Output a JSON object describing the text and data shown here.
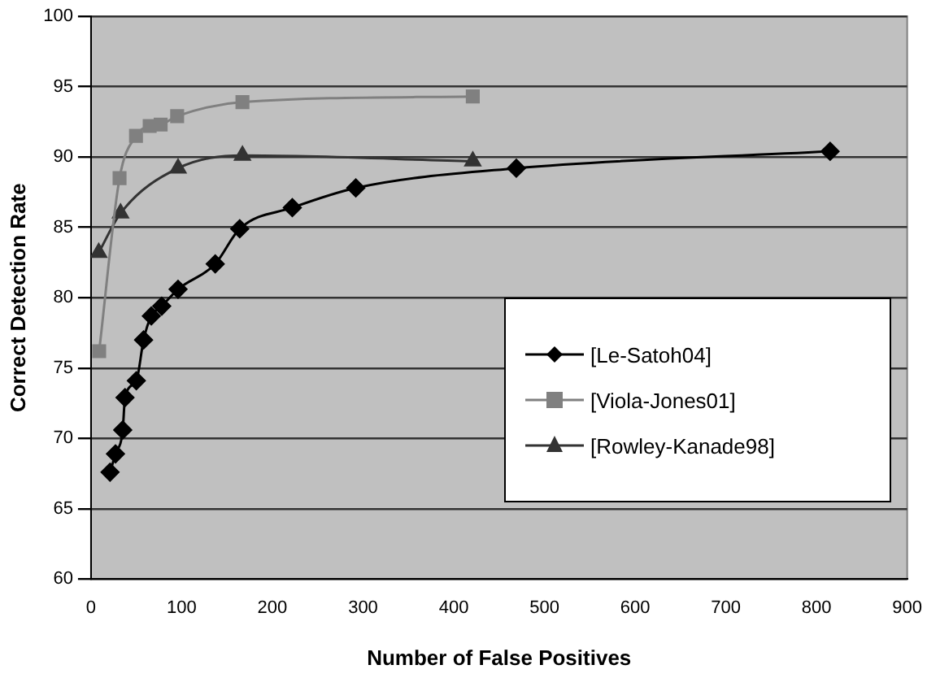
{
  "chart_data": {
    "type": "line",
    "xlabel": "Number of False Positives",
    "ylabel": "Correct Detection Rate",
    "xlim": [
      0,
      900
    ],
    "xticks": [
      0,
      100,
      200,
      300,
      400,
      500,
      600,
      700,
      800,
      900
    ],
    "ylim": [
      60,
      100
    ],
    "yticks": [
      60,
      65,
      70,
      75,
      80,
      85,
      90,
      95,
      100
    ],
    "grid": "y",
    "legend": "right",
    "series": [
      {
        "name": "[Le-Satoh04]",
        "color": "#000000",
        "marker": "diamond",
        "x": [
          21,
          27,
          35,
          37.5,
          50,
          58,
          66.5,
          78,
          96,
          137,
          164,
          222,
          292,
          469,
          815
        ],
        "values": [
          67.6,
          68.9,
          70.6,
          72.9,
          74.1,
          77.0,
          78.7,
          79.4,
          80.6,
          82.4,
          84.9,
          86.4,
          87.8,
          89.2,
          90.4
        ]
      },
      {
        "name": "[Viola-Jones01]",
        "color": "#808080",
        "marker": "square",
        "x": [
          9,
          31.5,
          49.6,
          64.7,
          76.8,
          95,
          167,
          421
        ],
        "values": [
          76.2,
          88.5,
          91.5,
          92.2,
          92.3,
          92.9,
          93.9,
          94.3
        ]
      },
      {
        "name": "[Rowley-Kanade98]",
        "color": "#333333",
        "marker": "triangle",
        "x": [
          8.5,
          32.6,
          96,
          167,
          421
        ],
        "values": [
          83.2,
          86.0,
          89.2,
          90.1,
          89.7
        ]
      }
    ]
  }
}
